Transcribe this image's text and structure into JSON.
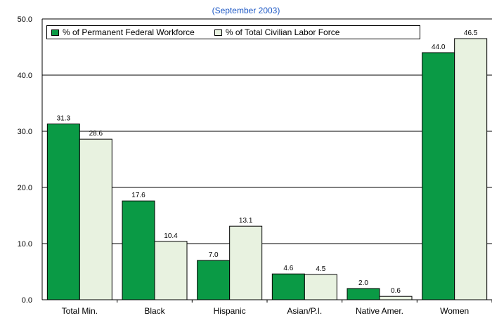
{
  "chart_data": {
    "type": "bar",
    "subtitle": "(September 2003)",
    "categories": [
      "Total Min.",
      "Black",
      "Hispanic",
      "Asian/P.I.",
      "Native Amer.",
      "Women"
    ],
    "series": [
      {
        "name": "% of Permanent Federal Workforce",
        "color": "#0a9a45",
        "values": [
          31.3,
          17.6,
          7.0,
          4.6,
          2.0,
          44.0
        ],
        "labels": [
          "31.3",
          "17.6",
          "7.0",
          "4.6",
          "2.0",
          "44.0"
        ]
      },
      {
        "name": "% of Total Civilian Labor Force",
        "color": "#e8f2e0",
        "values": [
          28.6,
          10.4,
          13.1,
          4.5,
          0.6,
          46.5
        ],
        "labels": [
          "28.6",
          "10.4",
          "13.1",
          "4.5",
          "0.6",
          "46.5"
        ]
      }
    ],
    "ylim": [
      0,
      50
    ],
    "yticks": [
      "0.0",
      "10.0",
      "20.0",
      "30.0",
      "40.0",
      "50.0"
    ],
    "grid": true,
    "legend_position": "top"
  }
}
